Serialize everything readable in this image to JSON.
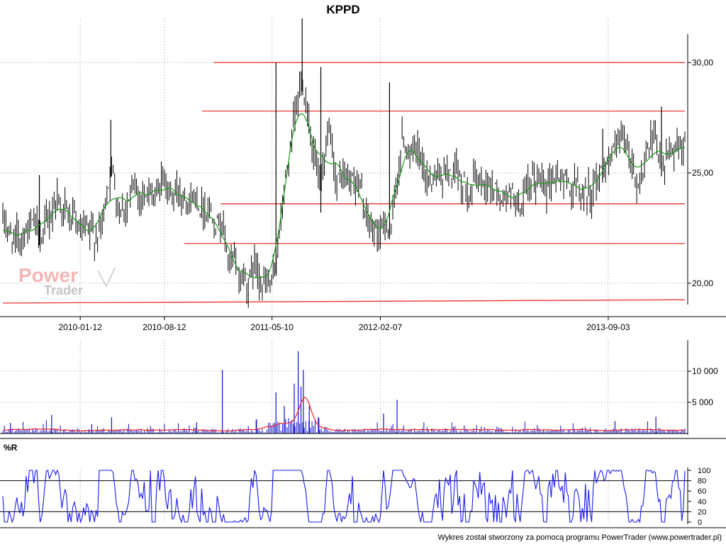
{
  "title": "KPPD",
  "footer": "Wykres został stworzony za pomocą programu PowerTrader (www.powertrader.pl)",
  "watermark": {
    "line1": "Power",
    "line2": "Trader"
  },
  "panes": {
    "volume": {
      "label": ""
    },
    "williams": {
      "label": "%R"
    }
  },
  "colors": {
    "candle": "#000000",
    "ma": "#1a9a1a",
    "resistance": "#ee3333",
    "volume_bar": "#1010cc",
    "volume_ma": "#ee2222",
    "wr_line": "#1a1aee",
    "grid": "#9a9a9a"
  },
  "chart_data": [
    {
      "type": "candlestick",
      "title": "KPPD",
      "x_labels": [
        "2010-01-12",
        "2010-08-12",
        "2011-05-10",
        "2012-02-07",
        "2013-09-03"
      ],
      "x_range": [
        "2009-07-01",
        "2014-03-15"
      ],
      "ylim": [
        19.0,
        32.0
      ],
      "y_ticks": [
        20,
        25,
        30
      ],
      "y_tick_labels": [
        "20,00",
        "25,00",
        "30,00"
      ],
      "grid": true,
      "price_path": [
        [
          "2009-07-01",
          22.8
        ],
        [
          "2009-08-01",
          21.8
        ],
        [
          "2009-09-01",
          22.6
        ],
        [
          "2009-10-15",
          22.2
        ],
        [
          "2009-11-15",
          24.0
        ],
        [
          "2009-12-15",
          23.0
        ],
        [
          "2010-01-12",
          22.1
        ],
        [
          "2010-02-15",
          21.9
        ],
        [
          "2010-03-10",
          22.8
        ],
        [
          "2010-03-30",
          25.4
        ],
        [
          "2010-04-20",
          23.5
        ],
        [
          "2010-05-20",
          24.0
        ],
        [
          "2010-06-20",
          24.2
        ],
        [
          "2010-07-20",
          23.8
        ],
        [
          "2010-08-12",
          24.8
        ],
        [
          "2010-09-01",
          24.0
        ],
        [
          "2010-10-01",
          24.3
        ],
        [
          "2010-11-01",
          23.9
        ],
        [
          "2010-12-01",
          23.5
        ],
        [
          "2011-01-01",
          23.0
        ],
        [
          "2011-01-25",
          20.8
        ],
        [
          "2011-02-20",
          20.3
        ],
        [
          "2011-03-10",
          20.1
        ],
        [
          "2011-04-01",
          20.9
        ],
        [
          "2011-04-20",
          20.0
        ],
        [
          "2011-05-10",
          19.6
        ],
        [
          "2011-05-30",
          22.5
        ],
        [
          "2011-06-20",
          25.5
        ],
        [
          "2011-07-10",
          27.5
        ],
        [
          "2011-07-25",
          29.3
        ],
        [
          "2011-08-15",
          27.2
        ],
        [
          "2011-09-10",
          23.8
        ],
        [
          "2011-09-30",
          26.5
        ],
        [
          "2011-10-20",
          24.5
        ],
        [
          "2011-11-20",
          24.8
        ],
        [
          "2011-12-15",
          24.5
        ],
        [
          "2012-01-10",
          22.4
        ],
        [
          "2012-02-07",
          22.3
        ],
        [
          "2012-03-10",
          22.9
        ],
        [
          "2012-04-01",
          26.5
        ],
        [
          "2012-05-01",
          26.0
        ],
        [
          "2012-06-01",
          24.7
        ],
        [
          "2012-07-01",
          25.1
        ],
        [
          "2012-08-01",
          24.8
        ],
        [
          "2012-09-01",
          24.5
        ],
        [
          "2012-10-01",
          24.6
        ],
        [
          "2012-11-01",
          24.6
        ],
        [
          "2012-12-15",
          23.9
        ],
        [
          "2013-02-01",
          23.6
        ],
        [
          "2013-03-15",
          24.7
        ],
        [
          "2013-05-01",
          24.9
        ],
        [
          "2013-06-15",
          24.3
        ],
        [
          "2013-07-20",
          24.1
        ],
        [
          "2013-09-03",
          25.8
        ],
        [
          "2013-10-15",
          26.1
        ],
        [
          "2013-11-20",
          24.5
        ],
        [
          "2013-12-20",
          26.2
        ],
        [
          "2014-01-20",
          25.3
        ],
        [
          "2014-02-20",
          26.4
        ],
        [
          "2014-03-15",
          26.5
        ]
      ],
      "spikes": [
        [
          "2009-10-01",
          24.9
        ],
        [
          "2010-03-30",
          27.4
        ],
        [
          "2011-05-20",
          30.0
        ],
        [
          "2011-07-25",
          32.0
        ],
        [
          "2011-09-10",
          29.8
        ],
        [
          "2012-03-01",
          29.1
        ],
        [
          "2013-08-20",
          27.0
        ],
        [
          "2014-01-15",
          28.0
        ]
      ],
      "moving_average": {
        "color": "green"
      },
      "horizontal_lines": [
        {
          "value": 30.0,
          "from": "2010-12-15"
        },
        {
          "value": 27.8,
          "from": "2010-11-15"
        },
        {
          "value": 23.6,
          "from": "2011-01-01"
        },
        {
          "value": 21.8,
          "from": "2010-10-01"
        },
        {
          "value": 19.1,
          "from": "2009-07-01",
          "to_value": 19.25
        }
      ]
    },
    {
      "type": "bar",
      "title": "",
      "ylim": [
        0,
        15000
      ],
      "y_ticks": [
        5000,
        10000
      ],
      "y_tick_labels": [
        "5 000",
        "10 000"
      ],
      "notable_spikes": [
        [
          "2009-07-20",
          1700
        ],
        [
          "2009-11-01",
          3000
        ],
        [
          "2010-02-10",
          1500
        ],
        [
          "2010-04-01",
          2600
        ],
        [
          "2010-11-01",
          1800
        ],
        [
          "2011-01-05",
          10200
        ],
        [
          "2011-04-01",
          2300
        ],
        [
          "2011-05-20",
          6600
        ],
        [
          "2011-06-10",
          4400
        ],
        [
          "2011-07-05",
          8000
        ],
        [
          "2011-07-15",
          13200
        ],
        [
          "2011-07-22",
          7500
        ],
        [
          "2011-07-28",
          10200
        ],
        [
          "2011-08-12",
          4500
        ],
        [
          "2011-09-05",
          2500
        ],
        [
          "2012-02-15",
          3200
        ],
        [
          "2012-03-20",
          5400
        ],
        [
          "2013-09-20",
          2000
        ],
        [
          "2014-01-01",
          2700
        ]
      ],
      "moving_average": {
        "color": "red",
        "peak": [
          "2011-08-01",
          5800
        ]
      }
    },
    {
      "type": "line",
      "title": "%R",
      "ylim": [
        0,
        100
      ],
      "y_ticks": [
        0,
        20,
        40,
        60,
        80,
        100
      ],
      "y_tick_labels": [
        "0",
        "20",
        "40",
        "60",
        "80",
        "100"
      ],
      "reference_lines": [
        20,
        80
      ],
      "series": [
        {
          "name": "",
          "oscillates_between": [
            0,
            100
          ]
        }
      ]
    }
  ]
}
